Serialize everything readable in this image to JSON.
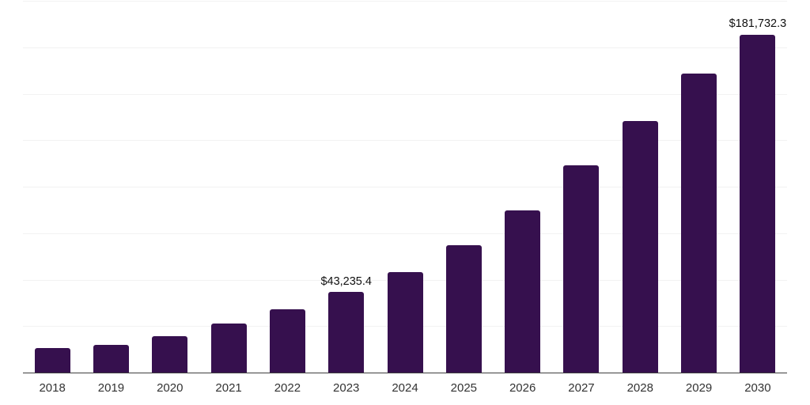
{
  "chart_data": {
    "type": "bar",
    "title": "",
    "xlabel": "",
    "ylabel": "",
    "categories": [
      "2018",
      "2019",
      "2020",
      "2021",
      "2022",
      "2023",
      "2024",
      "2025",
      "2026",
      "2027",
      "2028",
      "2029",
      "2030"
    ],
    "values": [
      13300,
      15100,
      19400,
      26200,
      34100,
      43235.4,
      54100,
      68600,
      87400,
      111300,
      135500,
      161000,
      181732.3
    ],
    "data_labels": {
      "2023": "$43,235.4",
      "2030": "$181,732.3"
    },
    "ylim": [
      0,
      200000
    ],
    "gridline_step": 25000,
    "legend": "none",
    "y_tick_labels_visible": false,
    "colors": {
      "bar": "#36104E",
      "gridline": "#f2f2f2",
      "axis_line": "#3f3f3f",
      "tick_label": "#333333",
      "data_label": "#111111",
      "background": "#ffffff"
    }
  }
}
